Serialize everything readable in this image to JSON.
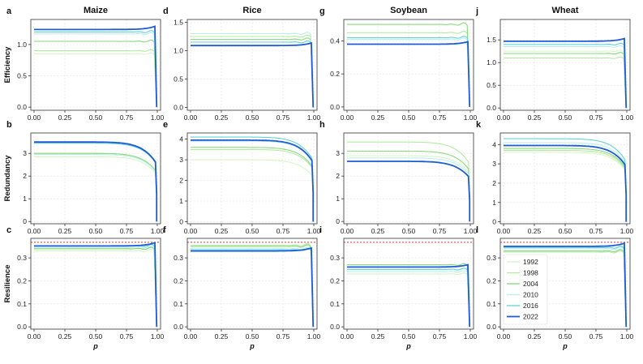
{
  "chart_data": {
    "type": "line",
    "layout": "3 rows x 4 columns small multiples",
    "columns": [
      {
        "letter_rows": [
          "a",
          "b",
          "c"
        ],
        "title": "Maize"
      },
      {
        "letter_rows": [
          "d",
          "e",
          "f"
        ],
        "title": "Rice"
      },
      {
        "letter_rows": [
          "g",
          "h",
          "i"
        ],
        "title": "Soybean"
      },
      {
        "letter_rows": [
          "j",
          "k",
          "l"
        ],
        "title": "Wheat"
      }
    ],
    "rows": [
      {
        "ylabel": "Efficiency"
      },
      {
        "ylabel": "Redundancy"
      },
      {
        "ylabel": "Resilience"
      }
    ],
    "xlabel": "p",
    "xlim": [
      0,
      1
    ],
    "xticks": [
      "0.00",
      "0.25",
      "0.50",
      "0.75",
      "1.00"
    ],
    "legend": {
      "placement": "inside panel l, lower-left",
      "entries": [
        "1992",
        "1998",
        "2004",
        "2010",
        "2016",
        "2022"
      ]
    },
    "series_colors": {
      "1992": "#d8f5c8",
      "1998": "#b4eba0",
      "2004": "#86da78",
      "2010": "#b8f0ee",
      "2016": "#63d2d6",
      "2022": "#1f5bd6"
    },
    "reference_line": {
      "panels": [
        "c",
        "f",
        "i",
        "l"
      ],
      "y": 0.368,
      "style": "dotted",
      "color": "#e03030"
    },
    "panels": [
      {
        "letter": "a",
        "row": 0,
        "col": 0,
        "ylim": [
          -0.05,
          1.4
        ],
        "yticks": [
          "0.0",
          "0.5",
          "1.0"
        ],
        "yvals": [
          0,
          0.5,
          1.0
        ],
        "series": [
          {
            "name": "1992",
            "plateau": 0.85,
            "end_x": 0.975
          },
          {
            "name": "1998",
            "plateau": 0.9,
            "end_x": 0.975
          },
          {
            "name": "2004",
            "plateau": 1.05,
            "end_x": 0.975
          },
          {
            "name": "2010",
            "plateau": 1.17,
            "end_x": 0.975
          },
          {
            "name": "2016",
            "plateau": 1.2,
            "end_x": 0.978
          },
          {
            "name": "2022",
            "plateau": 1.24,
            "end_x": 0.98
          }
        ]
      },
      {
        "letter": "d",
        "row": 0,
        "col": 1,
        "ylim": [
          -0.05,
          1.55
        ],
        "yticks": [
          "0.0",
          "0.5",
          "1.0",
          "1.5"
        ],
        "yvals": [
          0,
          0.5,
          1.0,
          1.5
        ],
        "series": [
          {
            "name": "1992",
            "plateau": 1.3,
            "end_x": 0.975
          },
          {
            "name": "1998",
            "plateau": 1.25,
            "end_x": 0.975
          },
          {
            "name": "2004",
            "plateau": 1.2,
            "end_x": 0.975
          },
          {
            "name": "2010",
            "plateau": 1.3,
            "end_x": 0.975
          },
          {
            "name": "2016",
            "plateau": 1.15,
            "end_x": 0.978
          },
          {
            "name": "2022",
            "plateau": 1.09,
            "end_x": 0.98
          }
        ]
      },
      {
        "letter": "g",
        "row": 0,
        "col": 2,
        "ylim": [
          -0.02,
          0.53
        ],
        "yticks": [
          "0.0",
          "0.2",
          "0.4"
        ],
        "yvals": [
          0,
          0.2,
          0.4
        ],
        "series": [
          {
            "name": "1992",
            "plateau": 0.38,
            "end_x": 0.975
          },
          {
            "name": "1998",
            "plateau": 0.45,
            "end_x": 0.975
          },
          {
            "name": "2004",
            "plateau": 0.5,
            "end_x": 0.975
          },
          {
            "name": "2010",
            "plateau": 0.41,
            "end_x": 0.975
          },
          {
            "name": "2016",
            "plateau": 0.42,
            "end_x": 0.978
          },
          {
            "name": "2022",
            "plateau": 0.38,
            "end_x": 0.98
          }
        ]
      },
      {
        "letter": "j",
        "row": 0,
        "col": 3,
        "ylim": [
          -0.05,
          1.95
        ],
        "yticks": [
          "0.0",
          "0.5",
          "1.0",
          "1.5"
        ],
        "yvals": [
          0,
          0.5,
          1.0,
          1.5
        ],
        "series": [
          {
            "name": "1992",
            "plateau": 1.25,
            "end_x": 0.975
          },
          {
            "name": "1998",
            "plateau": 1.1,
            "end_x": 0.975
          },
          {
            "name": "2004",
            "plateau": 1.2,
            "end_x": 0.975
          },
          {
            "name": "2010",
            "plateau": 1.35,
            "end_x": 0.975
          },
          {
            "name": "2016",
            "plateau": 1.4,
            "end_x": 0.978
          },
          {
            "name": "2022",
            "plateau": 1.47,
            "end_x": 0.98
          }
        ]
      },
      {
        "letter": "b",
        "row": 1,
        "col": 0,
        "ylim": [
          -0.1,
          3.9
        ],
        "yticks": [
          "0",
          "1",
          "2",
          "3"
        ],
        "yvals": [
          0,
          1,
          2,
          3
        ],
        "series": [
          {
            "name": "1992",
            "plateau": 2.85,
            "end_x": 0.985
          },
          {
            "name": "1998",
            "plateau": 3.0,
            "end_x": 0.985
          },
          {
            "name": "2004",
            "plateau": 3.0,
            "end_x": 0.985
          },
          {
            "name": "2010",
            "plateau": 2.95,
            "end_x": 0.985
          },
          {
            "name": "2016",
            "plateau": 3.45,
            "end_x": 0.985
          },
          {
            "name": "2022",
            "plateau": 3.5,
            "end_x": 0.985
          }
        ]
      },
      {
        "letter": "e",
        "row": 1,
        "col": 1,
        "ylim": [
          -0.1,
          4.3
        ],
        "yticks": [
          "0",
          "1",
          "2",
          "3",
          "4"
        ],
        "yvals": [
          0,
          1,
          2,
          3,
          4
        ],
        "series": [
          {
            "name": "1992",
            "plateau": 3.0,
            "end_x": 0.985
          },
          {
            "name": "1998",
            "plateau": 3.5,
            "end_x": 0.985
          },
          {
            "name": "2004",
            "plateau": 3.6,
            "end_x": 0.985
          },
          {
            "name": "2010",
            "plateau": 3.9,
            "end_x": 0.985
          },
          {
            "name": "2016",
            "plateau": 4.1,
            "end_x": 0.985
          },
          {
            "name": "2022",
            "plateau": 3.95,
            "end_x": 0.985
          }
        ]
      },
      {
        "letter": "h",
        "row": 1,
        "col": 2,
        "ylim": [
          -0.1,
          3.9
        ],
        "yticks": [
          "0",
          "1",
          "2",
          "3"
        ],
        "yvals": [
          0,
          1,
          2,
          3
        ],
        "series": [
          {
            "name": "1992",
            "plateau": 2.9,
            "end_x": 0.985
          },
          {
            "name": "1998",
            "plateau": 3.5,
            "end_x": 0.985
          },
          {
            "name": "2004",
            "plateau": 3.1,
            "end_x": 0.985
          },
          {
            "name": "2010",
            "plateau": 2.8,
            "end_x": 0.985
          },
          {
            "name": "2016",
            "plateau": 2.65,
            "end_x": 0.985
          },
          {
            "name": "2022",
            "plateau": 2.65,
            "end_x": 0.985
          }
        ]
      },
      {
        "letter": "k",
        "row": 1,
        "col": 3,
        "ylim": [
          -0.1,
          4.6
        ],
        "yticks": [
          "0",
          "1",
          "2",
          "3",
          "4"
        ],
        "yvals": [
          0,
          1,
          2,
          3,
          4
        ],
        "series": [
          {
            "name": "1992",
            "plateau": 3.6,
            "end_x": 0.985
          },
          {
            "name": "1998",
            "plateau": 3.7,
            "end_x": 0.985
          },
          {
            "name": "2004",
            "plateau": 3.8,
            "end_x": 0.985
          },
          {
            "name": "2010",
            "plateau": 4.1,
            "end_x": 0.985
          },
          {
            "name": "2016",
            "plateau": 4.3,
            "end_x": 0.985
          },
          {
            "name": "2022",
            "plateau": 3.95,
            "end_x": 0.985
          }
        ]
      },
      {
        "letter": "c",
        "row": 2,
        "col": 0,
        "ylim": [
          -0.01,
          0.385
        ],
        "yticks": [
          "0.0",
          "0.1",
          "0.2",
          "0.3"
        ],
        "yvals": [
          0,
          0.1,
          0.2,
          0.3
        ],
        "series": [
          {
            "name": "1992",
            "plateau": 0.33,
            "end_x": 0.975
          },
          {
            "name": "1998",
            "plateau": 0.34,
            "end_x": 0.975
          },
          {
            "name": "2004",
            "plateau": 0.34,
            "end_x": 0.975
          },
          {
            "name": "2010",
            "plateau": 0.345,
            "end_x": 0.975
          },
          {
            "name": "2016",
            "plateau": 0.352,
            "end_x": 0.978
          },
          {
            "name": "2022",
            "plateau": 0.352,
            "end_x": 0.98
          }
        ]
      },
      {
        "letter": "f",
        "row": 2,
        "col": 1,
        "ylim": [
          -0.01,
          0.385
        ],
        "yticks": [
          "0.0",
          "0.1",
          "0.2",
          "0.3"
        ],
        "yvals": [
          0,
          0.1,
          0.2,
          0.3
        ],
        "series": [
          {
            "name": "1992",
            "plateau": 0.355,
            "end_x": 0.975
          },
          {
            "name": "1998",
            "plateau": 0.355,
            "end_x": 0.975
          },
          {
            "name": "2004",
            "plateau": 0.35,
            "end_x": 0.975
          },
          {
            "name": "2010",
            "plateau": 0.34,
            "end_x": 0.975
          },
          {
            "name": "2016",
            "plateau": 0.335,
            "end_x": 0.978
          },
          {
            "name": "2022",
            "plateau": 0.33,
            "end_x": 0.98
          }
        ]
      },
      {
        "letter": "i",
        "row": 2,
        "col": 2,
        "ylim": [
          -0.01,
          0.385
        ],
        "yticks": [
          "0.0",
          "0.1",
          "0.2",
          "0.3"
        ],
        "yvals": [
          0,
          0.1,
          0.2,
          0.3
        ],
        "series": [
          {
            "name": "1992",
            "plateau": 0.23,
            "end_x": 0.975
          },
          {
            "name": "1998",
            "plateau": 0.25,
            "end_x": 0.975
          },
          {
            "name": "2004",
            "plateau": 0.27,
            "end_x": 0.975
          },
          {
            "name": "2010",
            "plateau": 0.24,
            "end_x": 0.975
          },
          {
            "name": "2016",
            "plateau": 0.25,
            "end_x": 0.978
          },
          {
            "name": "2022",
            "plateau": 0.26,
            "end_x": 0.98
          }
        ]
      },
      {
        "letter": "l",
        "row": 2,
        "col": 3,
        "ylim": [
          -0.01,
          0.385
        ],
        "yticks": [
          "0.0",
          "0.1",
          "0.2",
          "0.3"
        ],
        "yvals": [
          0,
          0.1,
          0.2,
          0.3
        ],
        "series": [
          {
            "name": "1992",
            "plateau": 0.33,
            "end_x": 0.975
          },
          {
            "name": "1998",
            "plateau": 0.325,
            "end_x": 0.975
          },
          {
            "name": "2004",
            "plateau": 0.33,
            "end_x": 0.975
          },
          {
            "name": "2010",
            "plateau": 0.34,
            "end_x": 0.975
          },
          {
            "name": "2016",
            "plateau": 0.345,
            "end_x": 0.978
          },
          {
            "name": "2022",
            "plateau": 0.35,
            "end_x": 0.98
          }
        ]
      }
    ]
  }
}
